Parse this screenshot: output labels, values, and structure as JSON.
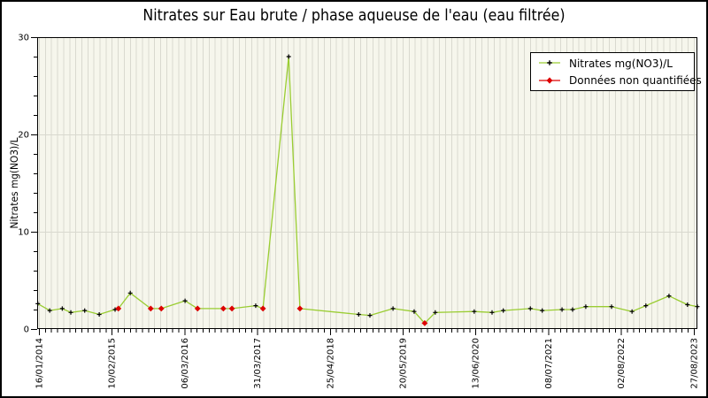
{
  "window": {
    "background": "#ffffff",
    "border_color": "#000000"
  },
  "legend": {
    "items": [
      {
        "label": "Nitrates mg(NO3)/L",
        "line_color": "#9acd32",
        "marker_color": "#000000",
        "marker": "plus-on-line"
      },
      {
        "label": "Données non quantifiées",
        "line_color": "#dd0000",
        "marker_color": "#dd0000",
        "marker": "diamond-on-line"
      }
    ]
  },
  "chart_data": {
    "type": "line",
    "title": "Nitrates sur Eau brute / phase aqueuse de l'eau (eau filtrée)",
    "xlabel": "",
    "ylabel": "Nitrates mg(NO3)/L",
    "ylim": [
      0,
      30
    ],
    "yticks": [
      0,
      10,
      20,
      30
    ],
    "y_minor_step": 2,
    "x_type": "time",
    "x_tick_labels": [
      "16/01/2014",
      "10/02/2015",
      "06/03/2016",
      "31/03/2017",
      "25/04/2018",
      "20/05/2019",
      "13/06/2020",
      "08/07/2021",
      "02/08/2022",
      "27/08/2023"
    ],
    "x_minor_divisions": 12,
    "grid": "vertical minor gridlines + horizontal major gridlines",
    "legend_position": "upper right",
    "line_color": "#9acd32",
    "point_color": "#000000",
    "non_quantified_color": "#dd0000",
    "plot_bg": "#f6f6ec",
    "grid_color": "#d9d9cf",
    "points": [
      {
        "x": 0.001,
        "y": 2.6,
        "quantified": true
      },
      {
        "x": 0.019,
        "y": 1.9,
        "quantified": true
      },
      {
        "x": 0.038,
        "y": 2.1,
        "quantified": true
      },
      {
        "x": 0.051,
        "y": 1.7,
        "quantified": true
      },
      {
        "x": 0.072,
        "y": 1.9,
        "quantified": true
      },
      {
        "x": 0.094,
        "y": 1.5,
        "quantified": true
      },
      {
        "x": 0.118,
        "y": 2.0,
        "quantified": true
      },
      {
        "x": 0.123,
        "y": 2.1,
        "quantified": false
      },
      {
        "x": 0.141,
        "y": 3.7,
        "quantified": true
      },
      {
        "x": 0.172,
        "y": 2.1,
        "quantified": false
      },
      {
        "x": 0.188,
        "y": 2.1,
        "quantified": false
      },
      {
        "x": 0.224,
        "y": 2.9,
        "quantified": true
      },
      {
        "x": 0.243,
        "y": 2.1,
        "quantified": false
      },
      {
        "x": 0.282,
        "y": 2.1,
        "quantified": false
      },
      {
        "x": 0.295,
        "y": 2.1,
        "quantified": false
      },
      {
        "x": 0.331,
        "y": 2.4,
        "quantified": true
      },
      {
        "x": 0.342,
        "y": 2.1,
        "quantified": false
      },
      {
        "x": 0.381,
        "y": 28.0,
        "quantified": true
      },
      {
        "x": 0.398,
        "y": 2.1,
        "quantified": false
      },
      {
        "x": 0.487,
        "y": 1.5,
        "quantified": true
      },
      {
        "x": 0.504,
        "y": 1.4,
        "quantified": true
      },
      {
        "x": 0.539,
        "y": 2.1,
        "quantified": true
      },
      {
        "x": 0.571,
        "y": 1.8,
        "quantified": true
      },
      {
        "x": 0.587,
        "y": 0.6,
        "quantified": false
      },
      {
        "x": 0.603,
        "y": 1.7,
        "quantified": true
      },
      {
        "x": 0.662,
        "y": 1.8,
        "quantified": true
      },
      {
        "x": 0.689,
        "y": 1.7,
        "quantified": true
      },
      {
        "x": 0.706,
        "y": 1.9,
        "quantified": true
      },
      {
        "x": 0.747,
        "y": 2.1,
        "quantified": true
      },
      {
        "x": 0.765,
        "y": 1.9,
        "quantified": true
      },
      {
        "x": 0.795,
        "y": 2.0,
        "quantified": true
      },
      {
        "x": 0.811,
        "y": 2.0,
        "quantified": true
      },
      {
        "x": 0.831,
        "y": 2.3,
        "quantified": true
      },
      {
        "x": 0.87,
        "y": 2.3,
        "quantified": true
      },
      {
        "x": 0.901,
        "y": 1.8,
        "quantified": true
      },
      {
        "x": 0.922,
        "y": 2.4,
        "quantified": true
      },
      {
        "x": 0.957,
        "y": 3.4,
        "quantified": true
      },
      {
        "x": 0.985,
        "y": 2.5,
        "quantified": true
      },
      {
        "x": 1.0,
        "y": 2.3,
        "quantified": true
      }
    ]
  }
}
